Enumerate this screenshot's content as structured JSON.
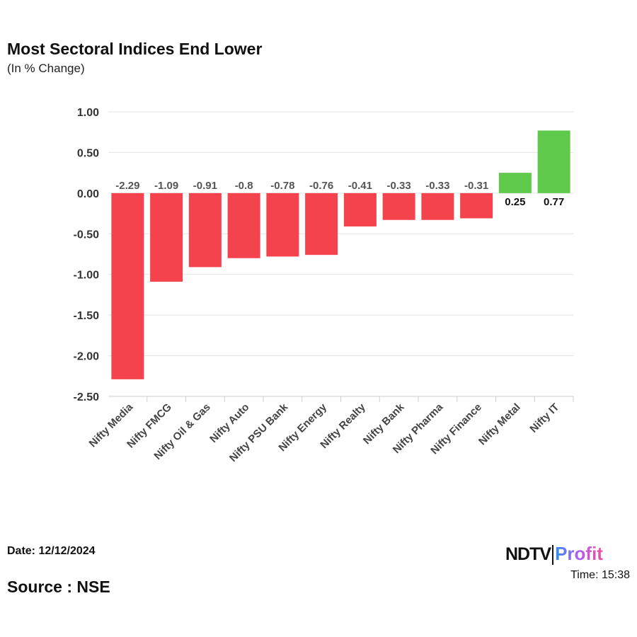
{
  "header": {
    "title": "Most Sectoral Indices End Lower",
    "subtitle": "(In % Change)"
  },
  "footer": {
    "date": "Date: 12/12/2024",
    "source": "Source : NSE",
    "time": "Time: 15:38",
    "logo": "NDTV Profit"
  },
  "chart_data": {
    "type": "bar",
    "title": "Most Sectoral Indices End Lower",
    "subtitle": "(In % Change)",
    "categories": [
      "Nifty Media",
      "Nifty FMCG",
      "Nifty Oil & Gas",
      "Nifty Auto",
      "Nifty PSU Bank",
      "Nifty Energy",
      "Nifty Realty",
      "Nifty Bank",
      "Nifty Pharma",
      "Nifty Finance",
      "Nifty Metal",
      "Nifty IT"
    ],
    "values": [
      -2.29,
      -1.09,
      -0.91,
      -0.8,
      -0.78,
      -0.76,
      -0.41,
      -0.33,
      -0.33,
      -0.31,
      0.25,
      0.77
    ],
    "ylim": [
      -2.5,
      1.0
    ],
    "yticks": [
      "1.00",
      "0.50",
      "0.00",
      "-0.50",
      "-1.00",
      "-1.50",
      "-2.00",
      "-2.50"
    ],
    "grid": true,
    "colors": {
      "negative": "#f4434d",
      "positive": "#5ec94a"
    }
  }
}
